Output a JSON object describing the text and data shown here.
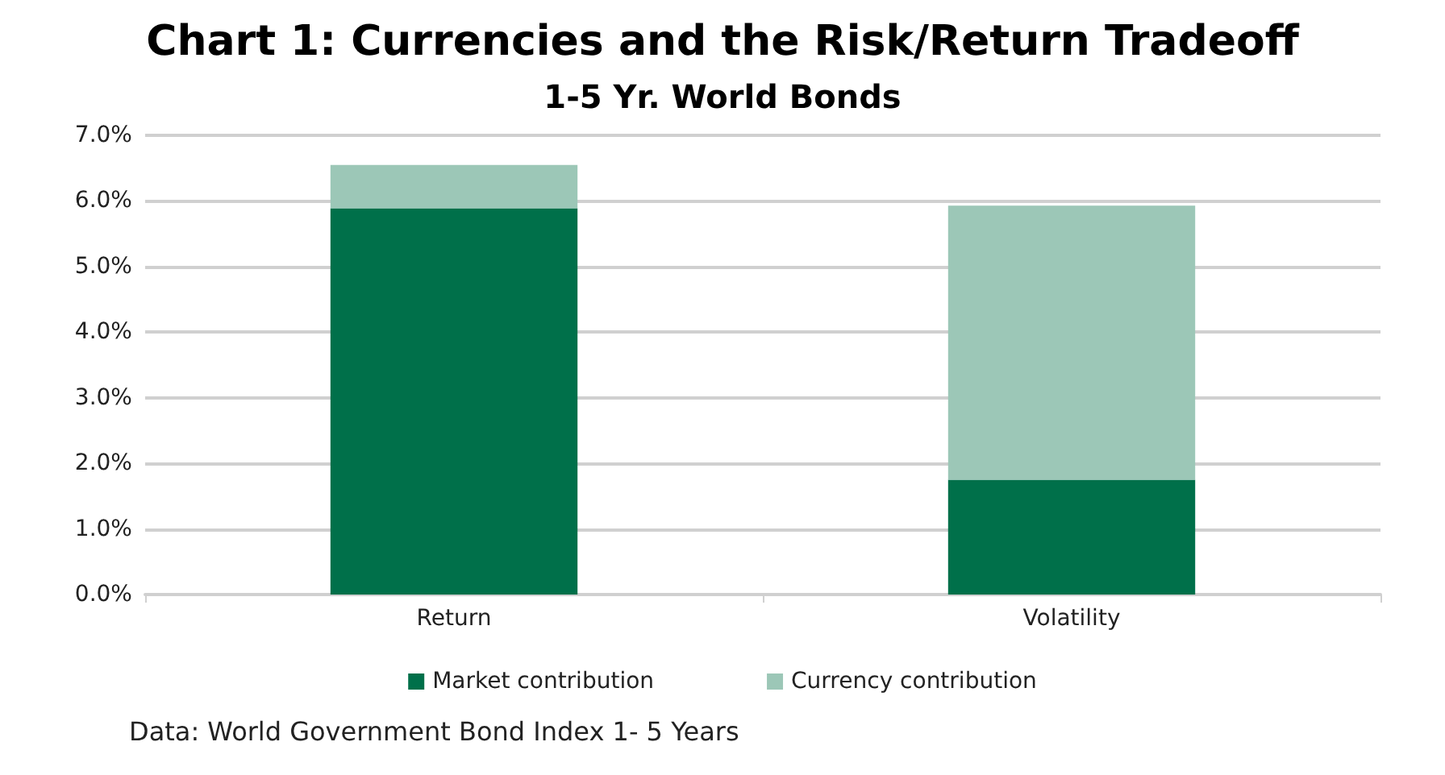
{
  "chart_data": {
    "type": "bar",
    "title": "Chart 1: Currencies and the Risk/Return Tradeoff",
    "subtitle": "1-5 Yr. World Bonds",
    "categories": [
      "Return",
      "Volatility"
    ],
    "series": [
      {
        "name": "Market contribution",
        "color": "#00704a",
        "values": [
          5.89,
          1.75
        ]
      },
      {
        "name": "Currency contribution",
        "color": "#9cc7b7",
        "values": [
          0.66,
          4.18
        ]
      }
    ],
    "stacked": true,
    "ylim": [
      0,
      7
    ],
    "yticks": [
      {
        "value": 0,
        "label": "0.0%"
      },
      {
        "value": 1,
        "label": "1.0%"
      },
      {
        "value": 2,
        "label": "2.0%"
      },
      {
        "value": 3,
        "label": "3.0%"
      },
      {
        "value": 4,
        "label": "4.0%"
      },
      {
        "value": 5,
        "label": "5.0%"
      },
      {
        "value": 6,
        "label": "6.0%"
      },
      {
        "value": 7,
        "label": "7.0%"
      }
    ],
    "grid": "y",
    "legend": "bottom",
    "annotations": [
      "Data: World Government Bond Index 1- 5 Years"
    ]
  }
}
